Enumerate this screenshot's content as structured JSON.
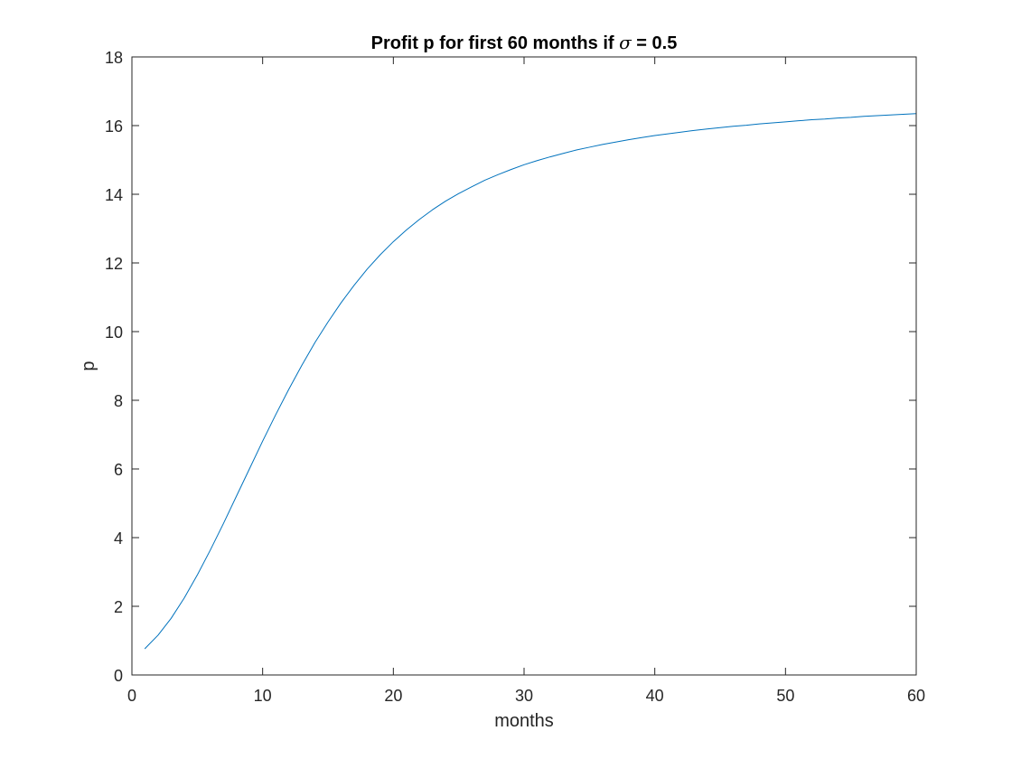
{
  "chart_data": {
    "type": "line",
    "title": {
      "prefix": "Profit p for first 60 months if ",
      "symbol": "σ",
      "suffix": " = 0.5"
    },
    "xlabel": "months",
    "ylabel": "p",
    "xlim": [
      0,
      60
    ],
    "ylim": [
      0,
      18
    ],
    "xticks": [
      0,
      10,
      20,
      30,
      40,
      50,
      60
    ],
    "yticks": [
      0,
      2,
      4,
      6,
      8,
      10,
      12,
      14,
      16,
      18
    ],
    "grid": false,
    "legend": "none",
    "series": [
      {
        "color": "#0072BD",
        "x": [
          1,
          2,
          3,
          4,
          5,
          6,
          7,
          8,
          9,
          10,
          11,
          12,
          13,
          14,
          15,
          16,
          17,
          18,
          19,
          20,
          21,
          22,
          23,
          24,
          25,
          26,
          27,
          28,
          29,
          30,
          31,
          32,
          33,
          34,
          35,
          36,
          37,
          38,
          39,
          40,
          41,
          42,
          43,
          44,
          45,
          46,
          47,
          48,
          49,
          50,
          51,
          52,
          53,
          54,
          55,
          56,
          57,
          58,
          59,
          60
        ],
        "values": [
          0.77,
          1.16,
          1.65,
          2.24,
          2.91,
          3.64,
          4.41,
          5.21,
          6.01,
          6.81,
          7.58,
          8.32,
          9.02,
          9.68,
          10.28,
          10.84,
          11.35,
          11.82,
          12.24,
          12.62,
          12.96,
          13.27,
          13.55,
          13.8,
          14.02,
          14.22,
          14.41,
          14.57,
          14.72,
          14.86,
          14.98,
          15.09,
          15.19,
          15.29,
          15.37,
          15.45,
          15.52,
          15.59,
          15.65,
          15.71,
          15.76,
          15.81,
          15.86,
          15.9,
          15.94,
          15.98,
          16.01,
          16.05,
          16.08,
          16.11,
          16.14,
          16.17,
          16.19,
          16.22,
          16.24,
          16.27,
          16.29,
          16.31,
          16.33,
          16.35
        ]
      }
    ]
  }
}
